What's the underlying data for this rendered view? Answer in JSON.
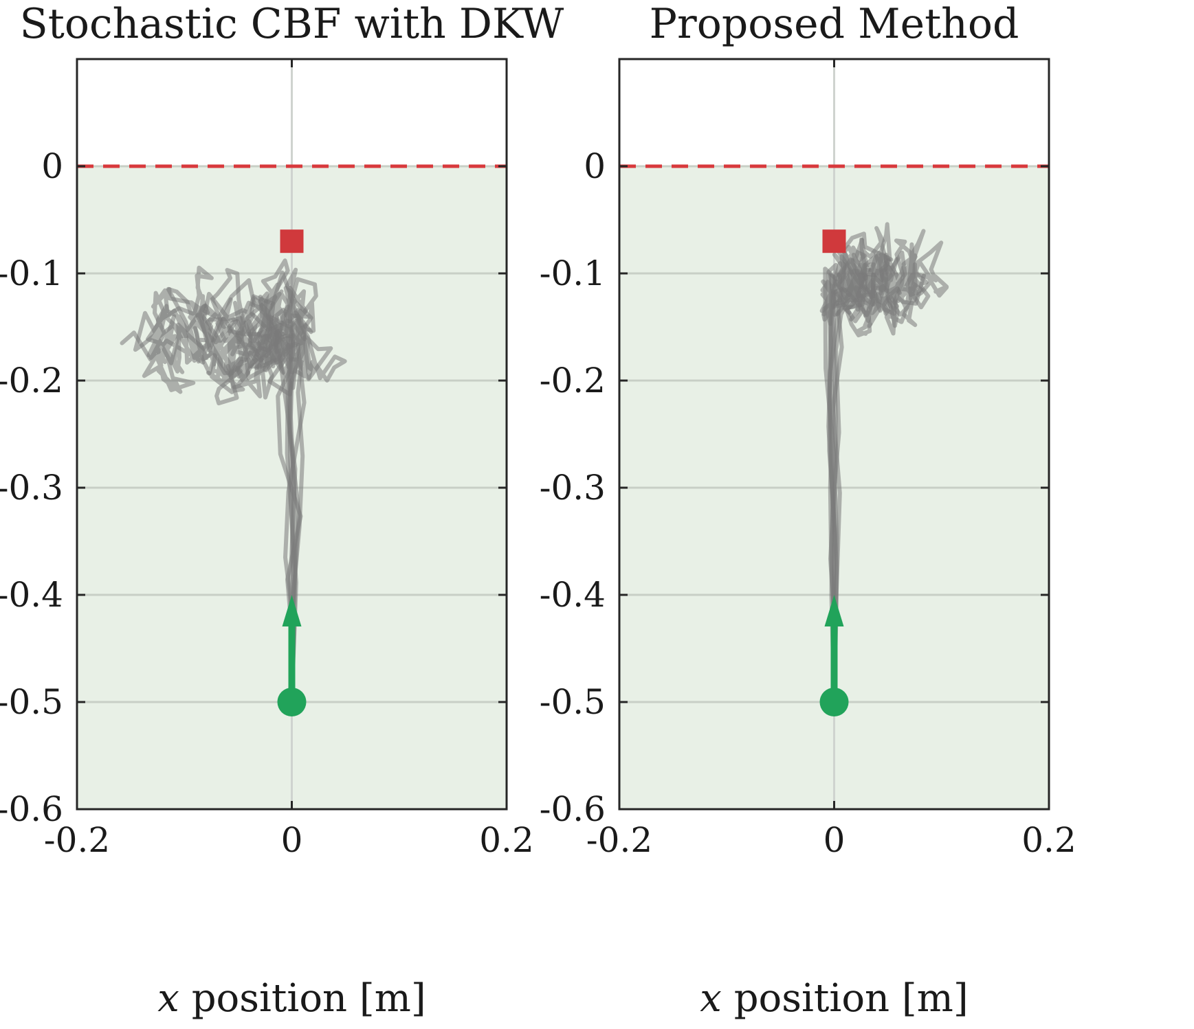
{
  "chart_data": [
    {
      "type": "line",
      "title": "Stochastic CBF with DKW",
      "xlabel_var": "x",
      "xlabel_text": " position [m]",
      "xlim": [
        -0.2,
        0.2
      ],
      "ylim": [
        -0.6,
        0.1
      ],
      "xticks": [
        -0.2,
        0,
        0.2
      ],
      "xtick_labels": [
        "-0.2",
        "0",
        "0.2"
      ],
      "yticks": [
        0,
        -0.1,
        -0.2,
        -0.3,
        -0.4,
        -0.5,
        -0.6
      ],
      "ytick_labels": [
        "0",
        "-0.1",
        "-0.2",
        "-0.3",
        "-0.4",
        "-0.5",
        "-0.6"
      ],
      "grid": "horizontal lines at y ticks, vertical line at x = 0",
      "safe_boundary_y": 0,
      "safe_region": "y <= 0 (shaded green)",
      "start": {
        "x": 0,
        "y": -0.5
      },
      "start_arrow_tip": {
        "x": 0,
        "y": -0.4
      },
      "goal": {
        "x": 0,
        "y": -0.07
      },
      "trajectory_count": 8,
      "trajectory_cluster": {
        "x_range": [
          -0.2,
          0.08
        ],
        "y_range": [
          -0.23,
          -0.07
        ],
        "center_y": -0.16
      },
      "colors": {
        "safe_region": "#e8f0e6",
        "boundary": "#d8393c",
        "goal": "#d0393c",
        "start": "#21a35a",
        "trajectories": "#7a7a7a"
      }
    },
    {
      "type": "line",
      "title": "Proposed Method",
      "xlabel_var": "x",
      "xlabel_text": " position [m]",
      "xlim": [
        -0.2,
        0.2
      ],
      "ylim": [
        -0.6,
        0.1
      ],
      "xticks": [
        -0.2,
        0,
        0.2
      ],
      "xtick_labels": [
        "-0.2",
        "0",
        "0.2"
      ],
      "yticks": [
        0,
        -0.1,
        -0.2,
        -0.3,
        -0.4,
        -0.5,
        -0.6
      ],
      "ytick_labels": [
        "0",
        "-0.1",
        "-0.2",
        "-0.3",
        "-0.4",
        "-0.5",
        "-0.6"
      ],
      "grid": "horizontal lines at y ticks, vertical line at x = 0",
      "safe_boundary_y": 0,
      "safe_region": "y <= 0 (shaded green)",
      "start": {
        "x": 0,
        "y": -0.5
      },
      "start_arrow_tip": {
        "x": 0,
        "y": -0.4
      },
      "goal": {
        "x": 0,
        "y": -0.07
      },
      "trajectory_count": 8,
      "trajectory_cluster": {
        "x_range": [
          -0.04,
          0.14
        ],
        "y_range": [
          -0.16,
          -0.04
        ],
        "center_y": -0.11
      },
      "colors": {
        "safe_region": "#e8f0e6",
        "boundary": "#d8393c",
        "goal": "#d0393c",
        "start": "#21a35a",
        "trajectories": "#7a7a7a"
      }
    }
  ]
}
